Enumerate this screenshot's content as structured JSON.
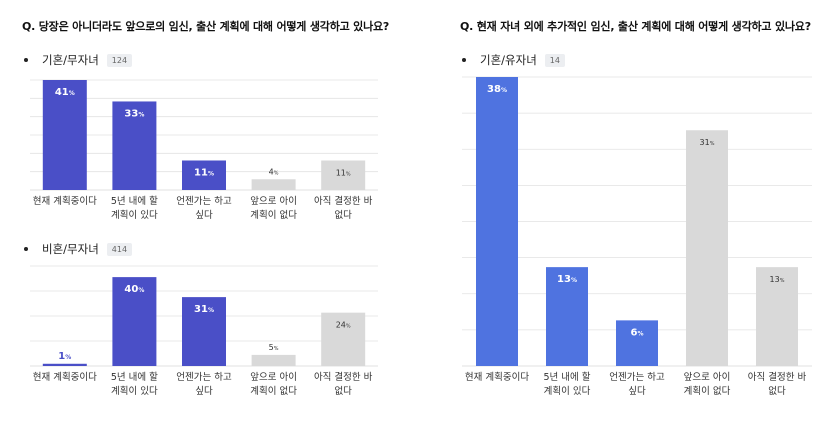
{
  "left": {
    "question": "Q. 당장은 아니더라도 앞으로의 임신, 출산 계획에 대해 어떻게 생각하고 있나요?",
    "group1_label": "기혼/무자녀",
    "group1_count": "124",
    "group2_label": "비혼/무자녀",
    "group2_count": "414"
  },
  "right": {
    "question": "Q. 현재 자녀 외에 추가적인 임신, 출산 계획에 대해 어떻게 생각하고 있나요?",
    "group_label": "기혼/유자녀",
    "group_count": "14"
  },
  "colors": {
    "highlight": "#4a4fc7",
    "highlight_right": "#4f73e0",
    "muted": "#d9d9d9",
    "grid": "#e2e2e2"
  },
  "chart_data": [
    {
      "type": "bar",
      "categories": [
        "현재 계획중이다",
        "5년 내에 할 계획이 있다",
        "언젠가는 하고 싶다",
        "앞으로 아이 계획이 없다",
        "아직 결정한 바 없다"
      ],
      "values": [
        41,
        33,
        11,
        4,
        11
      ],
      "data_labels": [
        "41%",
        "33%",
        "11%",
        "4%",
        "11%"
      ],
      "highlight": [
        true,
        true,
        true,
        false,
        false
      ],
      "ylim": [
        0,
        41
      ]
    },
    {
      "type": "bar",
      "categories": [
        "현재 계획중이다",
        "5년 내에 할 계획이 있다",
        "언젠가는 하고 싶다",
        "앞으로 아이 계획이 없다",
        "아직 결정한 바 없다"
      ],
      "values": [
        1,
        40,
        31,
        5,
        24
      ],
      "data_labels": [
        "1%",
        "40%",
        "31%",
        "5%",
        "24%"
      ],
      "highlight": [
        true,
        true,
        true,
        false,
        false
      ],
      "ylim": [
        0,
        45
      ]
    },
    {
      "type": "bar",
      "categories": [
        "현재 계획중이다",
        "5년 내에 할 계획이 있다",
        "언젠가는 하고 싶다",
        "앞으로 아이 계획이 없다",
        "아직 결정한 바 없다"
      ],
      "values": [
        38,
        13,
        6,
        31,
        13
      ],
      "data_labels": [
        "38%",
        "13%",
        "6%",
        "31%",
        "13%"
      ],
      "highlight": [
        true,
        true,
        true,
        false,
        false
      ],
      "ylim": [
        0,
        38
      ]
    }
  ]
}
